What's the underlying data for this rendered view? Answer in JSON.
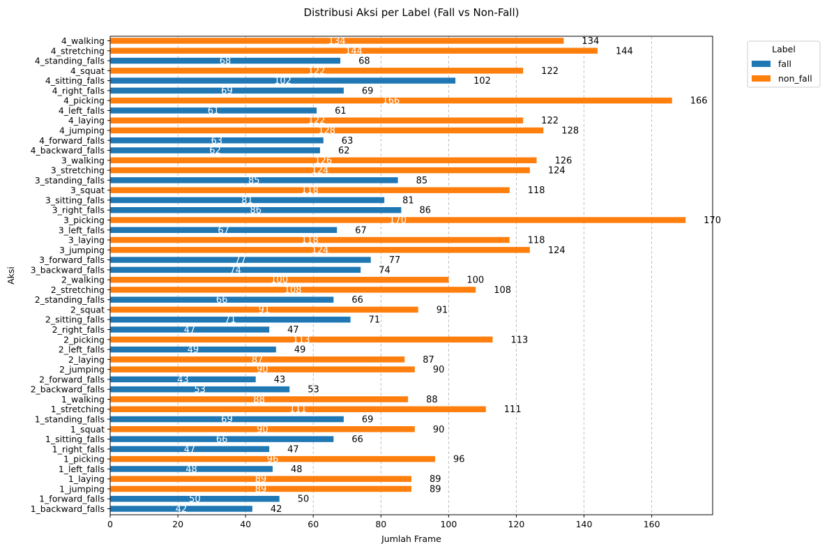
{
  "chart_data": {
    "type": "bar",
    "orientation": "horizontal",
    "title": "Distribusi Aksi per Label (Fall vs Non-Fall)",
    "xlabel": "Jumlah Frame",
    "ylabel": "Aksi",
    "xlim": [
      0,
      178
    ],
    "xticks": [
      0,
      20,
      40,
      60,
      80,
      100,
      120,
      140,
      160
    ],
    "grid": "x-dashed",
    "legend": {
      "title": "Label",
      "placement": "outside-top-right"
    },
    "series_colors": {
      "fall": "#1f77b4",
      "non_fall": "#ff7f0e"
    },
    "bars": [
      {
        "category": "4_walking",
        "label": "non_fall",
        "value": 134
      },
      {
        "category": "4_stretching",
        "label": "non_fall",
        "value": 144
      },
      {
        "category": "4_standing_falls",
        "label": "fall",
        "value": 68
      },
      {
        "category": "4_squat",
        "label": "non_fall",
        "value": 122
      },
      {
        "category": "4_sitting_falls",
        "label": "fall",
        "value": 102
      },
      {
        "category": "4_right_falls",
        "label": "fall",
        "value": 69
      },
      {
        "category": "4_picking",
        "label": "non_fall",
        "value": 166
      },
      {
        "category": "4_left_falls",
        "label": "fall",
        "value": 61
      },
      {
        "category": "4_laying",
        "label": "non_fall",
        "value": 122
      },
      {
        "category": "4_jumping",
        "label": "non_fall",
        "value": 128
      },
      {
        "category": "4_forward_falls",
        "label": "fall",
        "value": 63
      },
      {
        "category": "4_backward_falls",
        "label": "fall",
        "value": 62
      },
      {
        "category": "3_walking",
        "label": "non_fall",
        "value": 126
      },
      {
        "category": "3_stretching",
        "label": "non_fall",
        "value": 124
      },
      {
        "category": "3_standing_falls",
        "label": "fall",
        "value": 85
      },
      {
        "category": "3_squat",
        "label": "non_fall",
        "value": 118
      },
      {
        "category": "3_sitting_falls",
        "label": "fall",
        "value": 81
      },
      {
        "category": "3_right_falls",
        "label": "fall",
        "value": 86
      },
      {
        "category": "3_picking",
        "label": "non_fall",
        "value": 170
      },
      {
        "category": "3_left_falls",
        "label": "fall",
        "value": 67
      },
      {
        "category": "3_laying",
        "label": "non_fall",
        "value": 118
      },
      {
        "category": "3_jumping",
        "label": "non_fall",
        "value": 124
      },
      {
        "category": "3_forward_falls",
        "label": "fall",
        "value": 77
      },
      {
        "category": "3_backward_falls",
        "label": "fall",
        "value": 74
      },
      {
        "category": "2_walking",
        "label": "non_fall",
        "value": 100
      },
      {
        "category": "2_stretching",
        "label": "non_fall",
        "value": 108
      },
      {
        "category": "2_standing_falls",
        "label": "fall",
        "value": 66
      },
      {
        "category": "2_squat",
        "label": "non_fall",
        "value": 91
      },
      {
        "category": "2_sitting_falls",
        "label": "fall",
        "value": 71
      },
      {
        "category": "2_right_falls",
        "label": "fall",
        "value": 47
      },
      {
        "category": "2_picking",
        "label": "non_fall",
        "value": 113
      },
      {
        "category": "2_left_falls",
        "label": "fall",
        "value": 49
      },
      {
        "category": "2_laying",
        "label": "non_fall",
        "value": 87
      },
      {
        "category": "2_jumping",
        "label": "non_fall",
        "value": 90
      },
      {
        "category": "2_forward_falls",
        "label": "fall",
        "value": 43
      },
      {
        "category": "2_backward_falls",
        "label": "fall",
        "value": 53
      },
      {
        "category": "1_walking",
        "label": "non_fall",
        "value": 88
      },
      {
        "category": "1_stretching",
        "label": "non_fall",
        "value": 111
      },
      {
        "category": "1_standing_falls",
        "label": "fall",
        "value": 69
      },
      {
        "category": "1_squat",
        "label": "non_fall",
        "value": 90
      },
      {
        "category": "1_sitting_falls",
        "label": "fall",
        "value": 66
      },
      {
        "category": "1_right_falls",
        "label": "fall",
        "value": 47
      },
      {
        "category": "1_picking",
        "label": "non_fall",
        "value": 96
      },
      {
        "category": "1_left_falls",
        "label": "fall",
        "value": 48
      },
      {
        "category": "1_laying",
        "label": "non_fall",
        "value": 89
      },
      {
        "category": "1_jumping",
        "label": "non_fall",
        "value": 89
      },
      {
        "category": "1_forward_falls",
        "label": "fall",
        "value": 50
      },
      {
        "category": "1_backward_falls",
        "label": "fall",
        "value": 42
      }
    ]
  }
}
